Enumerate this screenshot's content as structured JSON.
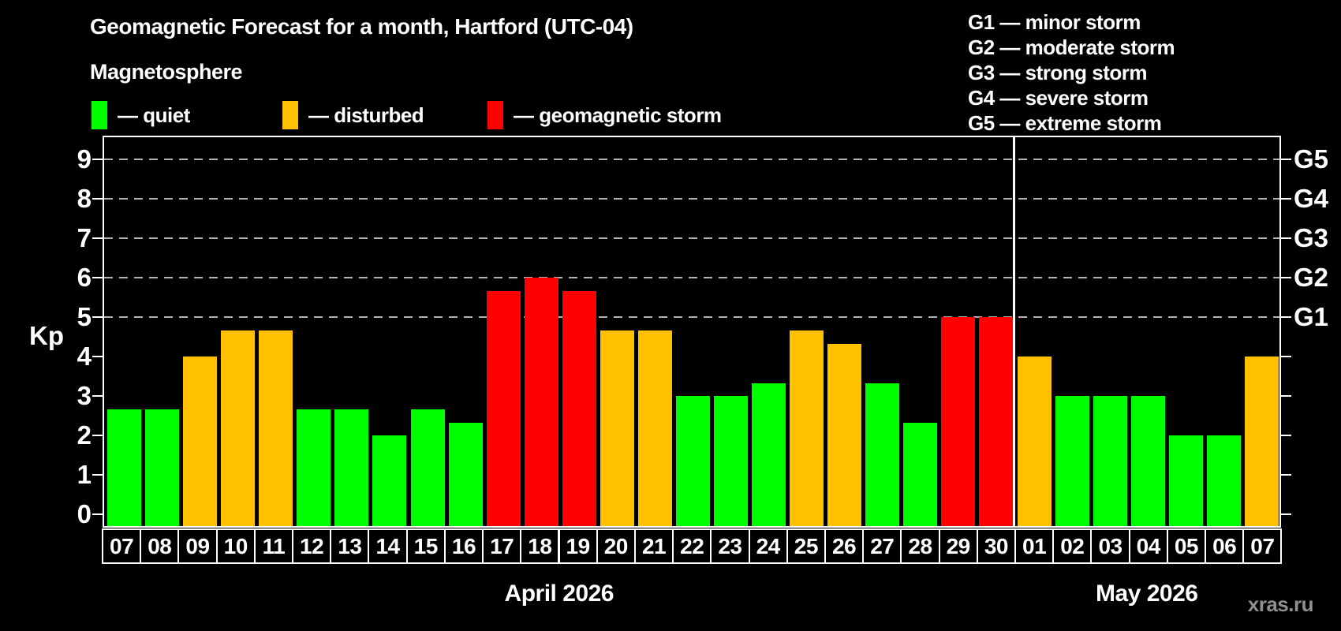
{
  "header": {
    "title": "Geomagnetic Forecast for a month, Hartford (UTC-04)",
    "subtitle": "Magnetosphere"
  },
  "status_legend": {
    "items": [
      {
        "key": "quiet",
        "label": "— quiet",
        "color": "#00ff00"
      },
      {
        "key": "disturbed",
        "label": "— disturbed",
        "color": "#ffc000"
      },
      {
        "key": "storm",
        "label": "— geomagnetic storm",
        "color": "#ff0000"
      }
    ]
  },
  "g_legend": {
    "items": [
      {
        "code": "G1",
        "label": "G1 — minor storm"
      },
      {
        "code": "G2",
        "label": "G2 — moderate storm"
      },
      {
        "code": "G3",
        "label": "G3 — strong storm"
      },
      {
        "code": "G4",
        "label": "G4 — severe storm"
      },
      {
        "code": "G5",
        "label": "G5 — extreme storm"
      }
    ]
  },
  "watermark": "xras.ru",
  "chart_data": {
    "type": "bar",
    "title": "Geomagnetic Forecast for a month, Hartford (UTC-04)",
    "ylabel": "Kp",
    "ylim": [
      0,
      9
    ],
    "yticks": [
      0,
      1,
      2,
      3,
      4,
      5,
      6,
      7,
      8,
      9
    ],
    "gridlines_at": [
      5,
      6,
      7,
      8,
      9
    ],
    "grid_style": "dashed horizontal lines at storm levels only",
    "right_axis_labels": [
      {
        "kp": 5,
        "label": "G1"
      },
      {
        "kp": 6,
        "label": "G2"
      },
      {
        "kp": 7,
        "label": "G3"
      },
      {
        "kp": 8,
        "label": "G4"
      },
      {
        "kp": 9,
        "label": "G5"
      }
    ],
    "status_colors": {
      "quiet": "#00ff00",
      "disturbed": "#ffc000",
      "storm": "#ff0000"
    },
    "months": [
      {
        "label": "April 2026",
        "categories": [
          "07",
          "08",
          "09",
          "10",
          "11",
          "12",
          "13",
          "14",
          "15",
          "16",
          "17",
          "18",
          "19",
          "20",
          "21",
          "22",
          "23",
          "24",
          "25",
          "26",
          "27",
          "28",
          "29",
          "30"
        ],
        "values": [
          2.67,
          2.67,
          4.0,
          4.67,
          4.67,
          2.67,
          2.67,
          2.0,
          2.67,
          2.33,
          5.67,
          6.0,
          5.67,
          4.67,
          4.67,
          3.0,
          3.0,
          3.33,
          4.67,
          4.33,
          3.33,
          2.33,
          5.0,
          5.0
        ],
        "statuses": [
          "quiet",
          "quiet",
          "disturbed",
          "disturbed",
          "disturbed",
          "quiet",
          "quiet",
          "quiet",
          "quiet",
          "quiet",
          "storm",
          "storm",
          "storm",
          "disturbed",
          "disturbed",
          "quiet",
          "quiet",
          "quiet",
          "disturbed",
          "disturbed",
          "quiet",
          "quiet",
          "storm",
          "storm"
        ]
      },
      {
        "label": "May 2026",
        "categories": [
          "01",
          "02",
          "03",
          "04",
          "05",
          "06",
          "07"
        ],
        "values": [
          4.0,
          3.0,
          3.0,
          3.0,
          2.0,
          2.0,
          4.0
        ],
        "statuses": [
          "disturbed",
          "quiet",
          "quiet",
          "quiet",
          "quiet",
          "quiet",
          "disturbed"
        ]
      }
    ]
  }
}
